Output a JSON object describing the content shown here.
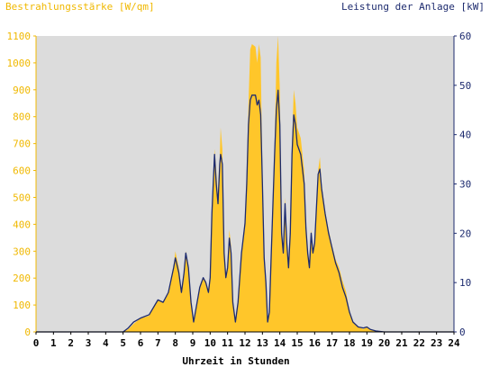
{
  "chart_data": {
    "type": "area",
    "title": "",
    "ylabel_left": "Bestrahlungsstärke [W/qm]",
    "ylabel_right": "Leistung der Anlage [kW]",
    "xlabel": "Uhrzeit in Stunden",
    "xlim": [
      0,
      24
    ],
    "ylim_left": [
      0,
      1100
    ],
    "ylim_right": [
      0,
      60
    ],
    "x_ticks": [
      "0",
      "1",
      "2",
      "3",
      "4",
      "5",
      "6",
      "7",
      "8",
      "9",
      "10",
      "11",
      "12",
      "13",
      "14",
      "15",
      "16",
      "17",
      "18",
      "19",
      "20",
      "21",
      "22",
      "23",
      "24"
    ],
    "y_left_ticks": [
      "0",
      "100",
      "200",
      "300",
      "400",
      "500",
      "600",
      "700",
      "800",
      "900",
      "1000",
      "1100"
    ],
    "y_right_ticks": [
      "0",
      "10",
      "20",
      "30",
      "40",
      "50",
      "60"
    ],
    "grid": false,
    "plot_background": "#dcdcdc",
    "series": [
      {
        "name": "Bestrahlungsstärke [W/qm]",
        "axis": "left",
        "style": "filled-area",
        "color": "#ffc62a",
        "points": [
          [
            0,
            0
          ],
          [
            5.0,
            0
          ],
          [
            5.3,
            10
          ],
          [
            5.6,
            30
          ],
          [
            6.0,
            50
          ],
          [
            6.5,
            60
          ],
          [
            7.0,
            120
          ],
          [
            7.3,
            110
          ],
          [
            7.6,
            150
          ],
          [
            7.9,
            240
          ],
          [
            8.0,
            300
          ],
          [
            8.2,
            240
          ],
          [
            8.35,
            150
          ],
          [
            8.5,
            220
          ],
          [
            8.6,
            300
          ],
          [
            8.75,
            250
          ],
          [
            8.9,
            120
          ],
          [
            9.05,
            40
          ],
          [
            9.2,
            90
          ],
          [
            9.4,
            160
          ],
          [
            9.6,
            200
          ],
          [
            9.75,
            190
          ],
          [
            9.9,
            150
          ],
          [
            10.0,
            200
          ],
          [
            10.1,
            450
          ],
          [
            10.25,
            680
          ],
          [
            10.35,
            600
          ],
          [
            10.45,
            500
          ],
          [
            10.55,
            650
          ],
          [
            10.6,
            760
          ],
          [
            10.7,
            680
          ],
          [
            10.8,
            300
          ],
          [
            10.9,
            200
          ],
          [
            11.0,
            250
          ],
          [
            11.1,
            380
          ],
          [
            11.2,
            320
          ],
          [
            11.3,
            100
          ],
          [
            11.45,
            50
          ],
          [
            11.6,
            120
          ],
          [
            11.8,
            300
          ],
          [
            12.0,
            420
          ],
          [
            12.1,
            600
          ],
          [
            12.2,
            850
          ],
          [
            12.3,
            1050
          ],
          [
            12.4,
            1070
          ],
          [
            12.6,
            1060
          ],
          [
            12.7,
            1000
          ],
          [
            12.8,
            1070
          ],
          [
            12.9,
            1020
          ],
          [
            13.0,
            600
          ],
          [
            13.1,
            300
          ],
          [
            13.2,
            200
          ],
          [
            13.3,
            30
          ],
          [
            13.4,
            80
          ],
          [
            13.5,
            300
          ],
          [
            13.7,
            700
          ],
          [
            13.8,
            1000
          ],
          [
            13.9,
            1100
          ],
          [
            14.0,
            900
          ],
          [
            14.1,
            400
          ],
          [
            14.2,
            300
          ],
          [
            14.3,
            500
          ],
          [
            14.4,
            350
          ],
          [
            14.5,
            250
          ],
          [
            14.6,
            400
          ],
          [
            14.7,
            700
          ],
          [
            14.8,
            900
          ],
          [
            14.9,
            850
          ],
          [
            15.0,
            760
          ],
          [
            15.2,
            720
          ],
          [
            15.4,
            600
          ],
          [
            15.5,
            400
          ],
          [
            15.6,
            300
          ],
          [
            15.7,
            250
          ],
          [
            15.8,
            380
          ],
          [
            15.9,
            300
          ],
          [
            16.0,
            350
          ],
          [
            16.2,
            600
          ],
          [
            16.3,
            650
          ],
          [
            16.4,
            550
          ],
          [
            16.6,
            450
          ],
          [
            16.8,
            380
          ],
          [
            17.0,
            320
          ],
          [
            17.2,
            270
          ],
          [
            17.4,
            240
          ],
          [
            17.6,
            190
          ],
          [
            17.8,
            150
          ],
          [
            18.0,
            80
          ],
          [
            18.2,
            40
          ],
          [
            18.5,
            20
          ],
          [
            18.8,
            10
          ],
          [
            19.0,
            20
          ],
          [
            19.2,
            10
          ],
          [
            19.5,
            5
          ],
          [
            20.0,
            0
          ],
          [
            24,
            0
          ]
        ]
      },
      {
        "name": "Leistung der Anlage [kW]",
        "axis": "right",
        "style": "line",
        "color": "#1c2a6e",
        "points": [
          [
            0,
            0
          ],
          [
            5.0,
            0
          ],
          [
            5.3,
            0.8
          ],
          [
            5.6,
            2
          ],
          [
            6.0,
            2.8
          ],
          [
            6.5,
            3.5
          ],
          [
            7.0,
            6.5
          ],
          [
            7.3,
            6
          ],
          [
            7.6,
            8
          ],
          [
            7.9,
            13
          ],
          [
            8.0,
            15
          ],
          [
            8.2,
            12
          ],
          [
            8.35,
            8
          ],
          [
            8.5,
            12
          ],
          [
            8.6,
            16
          ],
          [
            8.75,
            13
          ],
          [
            8.9,
            6
          ],
          [
            9.05,
            2
          ],
          [
            9.2,
            5
          ],
          [
            9.4,
            9
          ],
          [
            9.6,
            11
          ],
          [
            9.75,
            10
          ],
          [
            9.9,
            8
          ],
          [
            10.0,
            11
          ],
          [
            10.1,
            24
          ],
          [
            10.25,
            36
          ],
          [
            10.35,
            30
          ],
          [
            10.45,
            26
          ],
          [
            10.55,
            34
          ],
          [
            10.6,
            36
          ],
          [
            10.7,
            34
          ],
          [
            10.8,
            16
          ],
          [
            10.9,
            11
          ],
          [
            11.0,
            13
          ],
          [
            11.1,
            19
          ],
          [
            11.2,
            16
          ],
          [
            11.3,
            6
          ],
          [
            11.45,
            2
          ],
          [
            11.6,
            6
          ],
          [
            11.8,
            16
          ],
          [
            12.0,
            22
          ],
          [
            12.1,
            30
          ],
          [
            12.2,
            42
          ],
          [
            12.3,
            47
          ],
          [
            12.4,
            48
          ],
          [
            12.6,
            48
          ],
          [
            12.7,
            46
          ],
          [
            12.8,
            47
          ],
          [
            12.9,
            44
          ],
          [
            13.0,
            30
          ],
          [
            13.1,
            15
          ],
          [
            13.2,
            10
          ],
          [
            13.3,
            2
          ],
          [
            13.4,
            4
          ],
          [
            13.5,
            15
          ],
          [
            13.7,
            36
          ],
          [
            13.8,
            45
          ],
          [
            13.9,
            49
          ],
          [
            14.0,
            42
          ],
          [
            14.1,
            20
          ],
          [
            14.2,
            16
          ],
          [
            14.3,
            26
          ],
          [
            14.4,
            18
          ],
          [
            14.5,
            13
          ],
          [
            14.6,
            20
          ],
          [
            14.7,
            36
          ],
          [
            14.8,
            44
          ],
          [
            14.9,
            42
          ],
          [
            15.0,
            38
          ],
          [
            15.2,
            36
          ],
          [
            15.4,
            30
          ],
          [
            15.5,
            21
          ],
          [
            15.6,
            16
          ],
          [
            15.7,
            13
          ],
          [
            15.8,
            20
          ],
          [
            15.9,
            16
          ],
          [
            16.0,
            18
          ],
          [
            16.2,
            32
          ],
          [
            16.3,
            33
          ],
          [
            16.4,
            29
          ],
          [
            16.6,
            24
          ],
          [
            16.8,
            20
          ],
          [
            17.0,
            17
          ],
          [
            17.2,
            14
          ],
          [
            17.4,
            12
          ],
          [
            17.6,
            9
          ],
          [
            17.8,
            7
          ],
          [
            18.0,
            4
          ],
          [
            18.2,
            2
          ],
          [
            18.5,
            1
          ],
          [
            18.8,
            0.8
          ],
          [
            19.0,
            1
          ],
          [
            19.2,
            0.5
          ],
          [
            19.5,
            0.2
          ],
          [
            20.0,
            0
          ],
          [
            24,
            0
          ]
        ]
      }
    ]
  }
}
